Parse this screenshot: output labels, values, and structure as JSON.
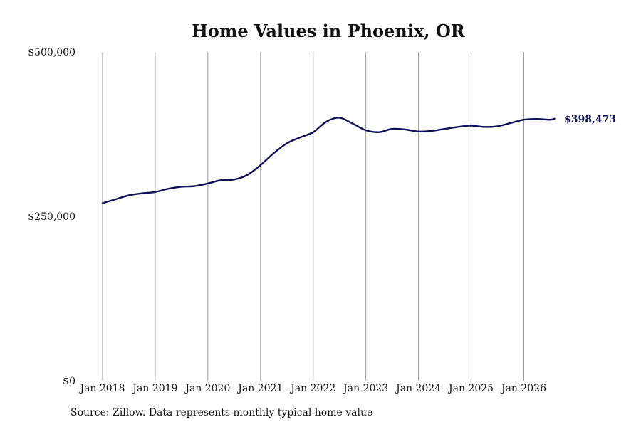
{
  "chart_data": {
    "type": "line",
    "title": "Home Values in Phoenix, OR",
    "xlabel": "",
    "ylabel": "",
    "ylim": [
      0,
      500000
    ],
    "yticks": [
      {
        "value": 0,
        "label": "$0"
      },
      {
        "value": 250000,
        "label": "$250,000"
      },
      {
        "value": 500000,
        "label": "$500,000"
      }
    ],
    "xticks": [
      {
        "value": "2018-01",
        "label": "Jan 2018"
      },
      {
        "value": "2019-01",
        "label": "Jan 2019"
      },
      {
        "value": "2020-01",
        "label": "Jan 2020"
      },
      {
        "value": "2021-01",
        "label": "Jan 2021"
      },
      {
        "value": "2022-01",
        "label": "Jan 2022"
      },
      {
        "value": "2023-01",
        "label": "Jan 2023"
      },
      {
        "value": "2024-01",
        "label": "Jan 2024"
      },
      {
        "value": "2025-01",
        "label": "Jan 2025"
      },
      {
        "value": "2026-01",
        "label": "Jan 2026"
      }
    ],
    "grid": "vertical",
    "legend": "none",
    "series": [
      {
        "color": "#0f0f5c",
        "end_label": "$398,473",
        "points": [
          [
            "2018-01",
            270000
          ],
          [
            "2018-04",
            276000
          ],
          [
            "2018-07",
            282000
          ],
          [
            "2018-10",
            285000
          ],
          [
            "2019-01",
            287000
          ],
          [
            "2019-04",
            292000
          ],
          [
            "2019-07",
            295000
          ],
          [
            "2019-10",
            296000
          ],
          [
            "2020-01",
            300000
          ],
          [
            "2020-04",
            305000
          ],
          [
            "2020-07",
            306000
          ],
          [
            "2020-10",
            313000
          ],
          [
            "2021-01",
            328000
          ],
          [
            "2021-04",
            346000
          ],
          [
            "2021-07",
            361000
          ],
          [
            "2021-10",
            370000
          ],
          [
            "2022-01",
            378000
          ],
          [
            "2022-04",
            394000
          ],
          [
            "2022-07",
            400000
          ],
          [
            "2022-10",
            391000
          ],
          [
            "2023-01",
            381000
          ],
          [
            "2023-04",
            378000
          ],
          [
            "2023-07",
            383000
          ],
          [
            "2023-10",
            382000
          ],
          [
            "2024-01",
            379000
          ],
          [
            "2024-04",
            380000
          ],
          [
            "2024-07",
            383000
          ],
          [
            "2024-10",
            386000
          ],
          [
            "2025-01",
            388000
          ],
          [
            "2025-04",
            386000
          ],
          [
            "2025-07",
            387000
          ],
          [
            "2025-10",
            392000
          ],
          [
            "2026-01",
            397000
          ],
          [
            "2026-04",
            398000
          ],
          [
            "2026-07",
            397000
          ],
          [
            "2026-08",
            398473
          ]
        ]
      }
    ]
  },
  "source_note": "Source: Zillow. Data represents monthly typical home value"
}
